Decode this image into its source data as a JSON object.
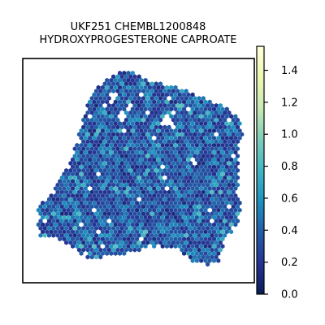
{
  "chart_data": {
    "type": "scatter",
    "title_lines": [
      "UKF251 CHEMBL1200848",
      "HYDROXYPROGESTERONE CAPROATE"
    ],
    "xlabel": "",
    "ylabel": "",
    "grid": false,
    "axis_ticks": false,
    "point_shape": "hexagon",
    "colormap": "YlGnBu",
    "colormap_stops": [
      "#081d58",
      "#253494",
      "#225ea8",
      "#1d91c0",
      "#41b6c4",
      "#7fcdbb",
      "#c7e9b4",
      "#edf8b1",
      "#ffffd9"
    ],
    "colorbar": {
      "placement": "right",
      "range": [
        0,
        1.55
      ],
      "ticks": [
        0.0,
        0.2,
        0.4,
        0.6,
        0.8,
        1.0,
        1.2,
        1.4
      ],
      "tick_labels": [
        "0.0",
        "0.2",
        "0.4",
        "0.6",
        "0.8",
        "1.0",
        "1.2",
        "1.4"
      ]
    },
    "tissue_outline_vertices": [
      [
        0.43,
        0.95
      ],
      [
        0.46,
        0.95
      ],
      [
        0.52,
        0.91
      ],
      [
        0.7,
        0.86
      ],
      [
        0.76,
        0.83
      ],
      [
        0.87,
        0.79
      ],
      [
        0.93,
        0.74
      ],
      [
        0.95,
        0.66
      ],
      [
        0.93,
        0.59
      ],
      [
        0.93,
        0.47
      ],
      [
        0.94,
        0.33
      ],
      [
        0.92,
        0.23
      ],
      [
        0.88,
        0.21
      ],
      [
        0.85,
        0.1
      ],
      [
        0.8,
        0.08
      ],
      [
        0.73,
        0.09
      ],
      [
        0.66,
        0.16
      ],
      [
        0.52,
        0.15
      ],
      [
        0.42,
        0.12
      ],
      [
        0.28,
        0.11
      ],
      [
        0.2,
        0.17
      ],
      [
        0.13,
        0.2
      ],
      [
        0.07,
        0.21
      ],
      [
        0.06,
        0.33
      ],
      [
        0.12,
        0.4
      ],
      [
        0.2,
        0.52
      ],
      [
        0.24,
        0.65
      ],
      [
        0.28,
        0.8
      ],
      [
        0.33,
        0.88
      ]
    ],
    "gaps": [
      [
        0.43,
        0.74,
        0.02
      ],
      [
        0.62,
        0.72,
        0.025
      ],
      [
        0.4,
        0.83,
        0.012
      ]
    ],
    "value_distribution": {
      "mean": 0.35,
      "min": 0.0,
      "max": 0.85
    }
  }
}
